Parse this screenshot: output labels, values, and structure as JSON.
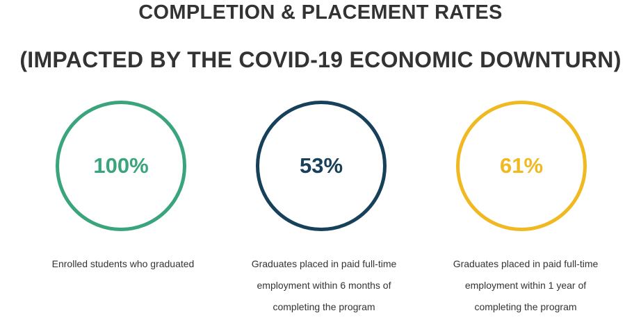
{
  "heading": {
    "line1": "COMPLETION & PLACEMENT RATES",
    "line2": "(IMPACTED BY THE COVID-19 ECONOMIC DOWNTURN)"
  },
  "stats": [
    {
      "value": "100%",
      "color": "#3aa47c",
      "caption": "Enrolled students who graduated"
    },
    {
      "value": "53%",
      "color": "#17405a",
      "caption": "Graduates placed in paid full-time\nemployment within 6 months of\ncompleting the program"
    },
    {
      "value": "61%",
      "color": "#f0b922",
      "caption": "Graduates placed in paid full-time\nemployment within 1 year of\ncompleting the program"
    }
  ]
}
